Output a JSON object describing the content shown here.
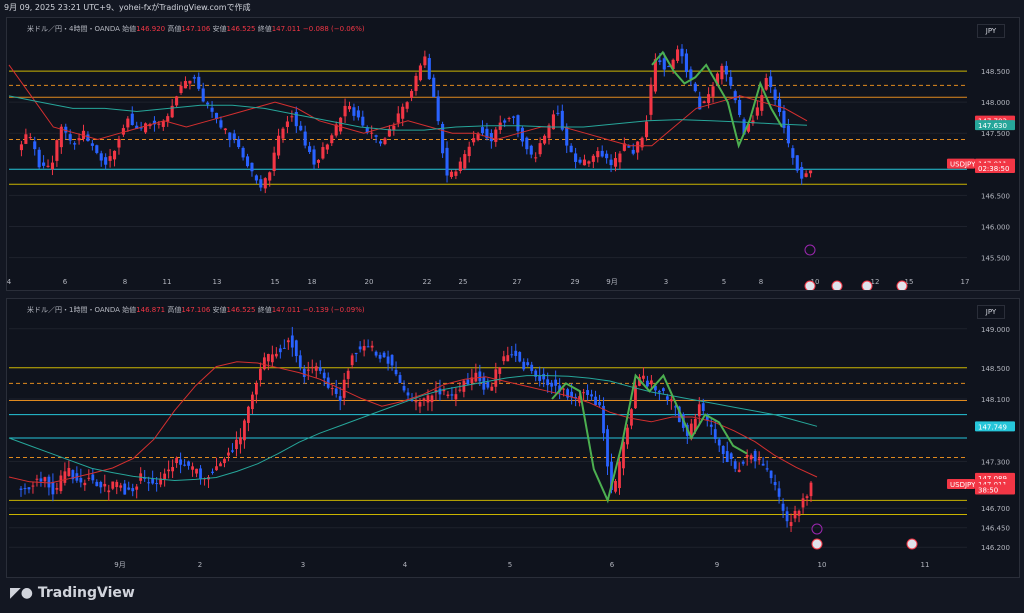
{
  "header": {
    "text": "9月 09, 2025 23:21 UTC+9、yohei-fxがTradingView.comで作成"
  },
  "brand": {
    "name": "TradingView"
  },
  "colors": {
    "up": "#f23645",
    "down": "#2962ff",
    "wick": "#787b86",
    "ma_red": "#d32f2f",
    "ma_teal": "#26a69a",
    "green": "#4caf50",
    "yellow": "#c9b300",
    "orange": "#e08a1f",
    "cyan": "#26c6da"
  },
  "panels": [
    {
      "legend": {
        "title": "米ドル／円・4時間・OANDA",
        "open_label": "始値",
        "open": "146.920",
        "high_label": "高値",
        "high": "147.106",
        "low_label": "安値",
        "low": "146.525",
        "close_label": "終値",
        "close": "147.011",
        "change": "−0.088 (−0.06%)"
      },
      "currency_button": "JPY",
      "y_ticks": [
        "148.500",
        "148.000",
        "147.500",
        "146.500",
        "146.000",
        "145.500"
      ],
      "price_tags": [
        {
          "text": "147.703",
          "color": "#f23645",
          "price": 147.703
        },
        {
          "text": "147.630",
          "color": "#26a69a",
          "price": 147.63
        },
        {
          "text": "USDJPY",
          "color": "#f23645",
          "price": 147.011,
          "label": true
        },
        {
          "text": "147.011",
          "color": "#f23645",
          "price": 147.011
        },
        {
          "text": "02:38:50",
          "color": "#f23645",
          "price": 146.94
        }
      ],
      "x_ticks": [
        "4",
        "6",
        "8",
        "11",
        "13",
        "15",
        "18",
        "20",
        "22",
        "25",
        "27",
        "29",
        "9月",
        "3",
        "5",
        "8",
        "10",
        "12",
        "15",
        "17"
      ],
      "ymin": 145.3,
      "ymax": 149.0,
      "hlines": [
        {
          "price": 148.5,
          "color": "yellow",
          "style": "solid"
        },
        {
          "price": 148.27,
          "color": "orange",
          "style": "dashed"
        },
        {
          "price": 148.08,
          "color": "orange",
          "style": "solid"
        },
        {
          "price": 147.4,
          "color": "orange",
          "style": "dashed"
        },
        {
          "price": 146.92,
          "color": "cyan",
          "style": "solid"
        },
        {
          "price": 146.68,
          "color": "yellow",
          "style": "solid"
        }
      ],
      "bars": 180,
      "path": [
        147.2,
        147.5,
        147.0,
        146.9,
        147.6,
        147.3,
        147.5,
        147.2,
        147.0,
        147.3,
        147.8,
        147.5,
        147.7,
        147.6,
        147.9,
        148.3,
        148.4,
        148.0,
        147.7,
        147.5,
        147.3,
        147.0,
        146.6,
        146.9,
        147.6,
        147.8,
        147.4,
        147.0,
        147.3,
        147.6,
        148.0,
        147.7,
        147.5,
        147.3,
        147.6,
        147.9,
        148.3,
        148.7,
        147.9,
        146.8,
        146.9,
        147.3,
        147.6,
        147.4,
        147.7,
        147.8,
        147.3,
        147.1,
        147.5,
        147.9,
        147.2,
        147.0,
        147.1,
        147.2,
        147.0,
        147.3,
        147.2,
        147.6,
        148.8,
        148.5,
        148.9,
        148.4,
        147.9,
        148.2,
        148.6,
        148.1,
        147.5,
        147.8,
        148.4,
        148.0,
        147.3,
        146.8,
        146.9
      ],
      "ma_red": [
        148.6,
        148.1,
        147.6,
        147.5,
        147.4,
        147.5,
        147.6,
        147.7,
        147.6,
        147.7,
        147.8,
        147.9,
        148.0,
        147.9,
        147.7,
        147.6,
        147.5,
        147.6,
        147.7,
        147.6,
        147.5,
        147.5,
        147.4,
        147.5,
        147.6,
        147.6,
        147.5,
        147.4,
        147.3,
        147.3,
        147.6,
        147.9,
        148.0,
        148.1,
        148.0,
        147.9,
        147.7
      ],
      "ma_teal": [
        148.1,
        148.0,
        147.9,
        147.9,
        147.85,
        147.9,
        147.95,
        147.95,
        147.9,
        147.8,
        147.7,
        147.6,
        147.55,
        147.55,
        147.6,
        147.62,
        147.62,
        147.6,
        147.6,
        147.65,
        147.7,
        147.72,
        147.7,
        147.68,
        147.65,
        147.63
      ],
      "green": [
        148.6,
        148.8,
        148.5,
        148.3,
        148.4,
        148.6,
        148.3,
        148.0,
        147.3,
        147.7,
        148.3,
        147.9,
        147.6
      ],
      "events": [
        "10",
        "12",
        "15"
      ]
    },
    {
      "legend": {
        "title": "米ドル／円・1時間・OANDA",
        "open_label": "始値",
        "open": "146.871",
        "high_label": "高値",
        "high": "147.106",
        "low_label": "安値",
        "low": "146.525",
        "close_label": "終値",
        "close": "147.011",
        "change": "−0.139 (−0.09%)"
      },
      "currency_button": "JPY",
      "y_ticks": [
        "149.000",
        "148.500",
        "148.100",
        "147.300",
        "146.700",
        "146.450",
        "146.200"
      ],
      "price_tags": [
        {
          "text": "147.749",
          "color": "#26c6da",
          "price": 147.749
        },
        {
          "text": "147.089",
          "color": "#f23645",
          "price": 147.089
        },
        {
          "text": "USDJPY",
          "color": "#f23645",
          "price": 147.011,
          "label": true
        },
        {
          "text": "147.011",
          "color": "#f23645",
          "price": 147.011
        },
        {
          "text": "38:50",
          "color": "#f23645",
          "price": 146.94
        }
      ],
      "x_ticks": [
        "9月",
        "2",
        "3",
        "4",
        "5",
        "6",
        "9",
        "10",
        "11"
      ],
      "ymin": 146.1,
      "ymax": 149.1,
      "hlines": [
        {
          "price": 148.5,
          "color": "yellow",
          "style": "solid"
        },
        {
          "price": 148.3,
          "color": "orange",
          "style": "dashed"
        },
        {
          "price": 148.08,
          "color": "orange",
          "style": "solid"
        },
        {
          "price": 147.9,
          "color": "cyan",
          "style": "solid"
        },
        {
          "price": 147.6,
          "color": "cyan",
          "style": "solid"
        },
        {
          "price": 147.35,
          "color": "orange",
          "style": "dashed"
        },
        {
          "price": 146.8,
          "color": "yellow",
          "style": "solid"
        },
        {
          "price": 146.62,
          "color": "yellow",
          "style": "solid"
        }
      ],
      "bars": 200,
      "path": [
        146.9,
        147.0,
        147.1,
        146.9,
        147.2,
        147.0,
        147.1,
        146.95,
        147.0,
        146.9,
        147.1,
        147.0,
        147.2,
        147.3,
        147.2,
        147.1,
        147.2,
        147.4,
        147.6,
        148.2,
        148.6,
        148.7,
        148.9,
        148.4,
        148.5,
        148.3,
        148.1,
        148.7,
        148.8,
        148.7,
        148.6,
        148.2,
        148.0,
        148.1,
        148.2,
        148.1,
        148.3,
        148.4,
        148.2,
        148.6,
        148.7,
        148.5,
        148.4,
        148.3,
        148.2,
        148.1,
        148.2,
        148.0,
        146.8,
        147.6,
        148.4,
        148.3,
        148.2,
        148.0,
        147.6,
        148.0,
        147.7,
        147.4,
        147.2,
        147.4,
        147.3,
        147.0,
        146.5,
        146.7,
        147.0
      ]
    }
  ]
}
